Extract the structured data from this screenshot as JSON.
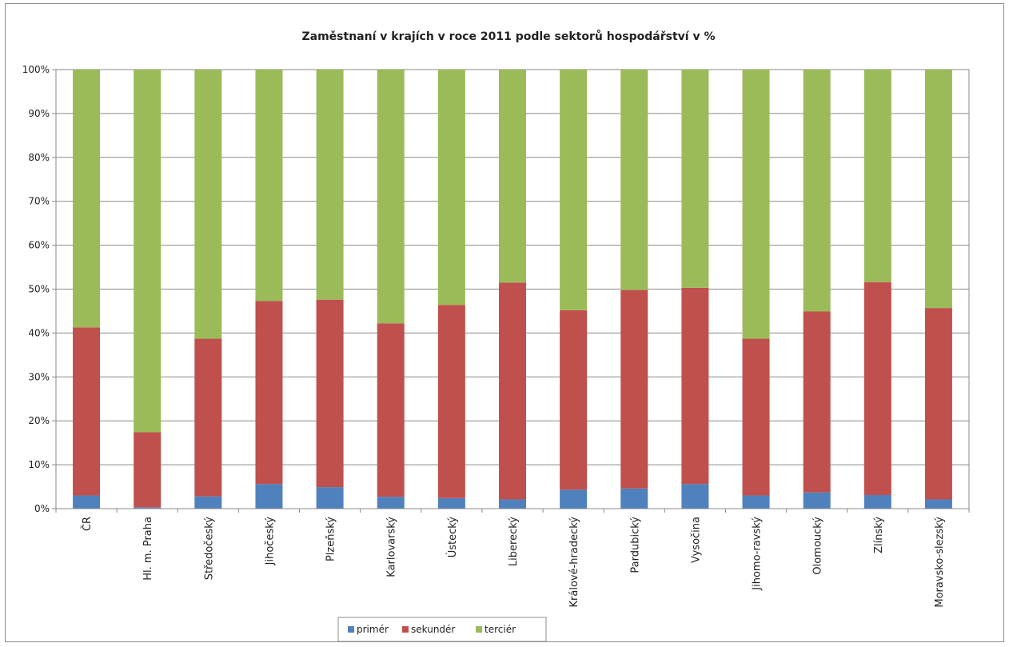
{
  "chart_data": {
    "type": "bar",
    "stacked": true,
    "title": "Zaměstnaní v krajích v roce 2011 podle sektorů hospodářství v %",
    "xlabel": "",
    "ylabel": "",
    "ylim": [
      0,
      100
    ],
    "y_tick_labels": [
      "0%",
      "10%",
      "20%",
      "30%",
      "40%",
      "50%",
      "60%",
      "70%",
      "80%",
      "90%",
      "100%"
    ],
    "grid": true,
    "legend_position": "bottom",
    "categories": [
      "ČR",
      "Hl. m. Praha",
      "Středočeský",
      "Jihočeský",
      "Plzeňský",
      "Karlovarský",
      "Ústecký",
      "Liberecký",
      "Královéhradecký",
      "Pardubický",
      "Vysočina",
      "Jihomoravský",
      "Olomoucký",
      "Zlínský",
      "Moravskoslezský"
    ],
    "category_labels": [
      "ČR",
      "Hl. m. Praha",
      "Středočeský",
      "Jihočeský",
      "Plzeňský",
      "Karlovarský",
      "Ústecký",
      "Liberecký",
      "Králové-hradecký",
      "Pardubický",
      "Vysočina",
      "Jihomo-ravský",
      "Olomoucký",
      "Zlínský",
      "Moravsko-slezský"
    ],
    "series": [
      {
        "name": "primér",
        "color": "#4f81bd",
        "values": [
          3.0,
          0.3,
          2.8,
          5.6,
          4.9,
          2.7,
          2.4,
          2.1,
          4.3,
          4.6,
          5.6,
          3.0,
          3.7,
          3.1,
          2.1
        ]
      },
      {
        "name": "sekundér",
        "color": "#c0504d",
        "values": [
          38.3,
          17.1,
          35.9,
          41.7,
          42.7,
          39.5,
          44.0,
          49.4,
          40.9,
          45.2,
          44.7,
          35.7,
          41.2,
          48.5,
          43.6
        ]
      },
      {
        "name": "terciér",
        "color": "#9bbb59",
        "values": [
          58.7,
          82.6,
          61.3,
          52.7,
          52.4,
          57.8,
          53.6,
          48.5,
          54.8,
          50.2,
          49.7,
          61.3,
          55.1,
          48.4,
          54.3
        ]
      }
    ]
  }
}
